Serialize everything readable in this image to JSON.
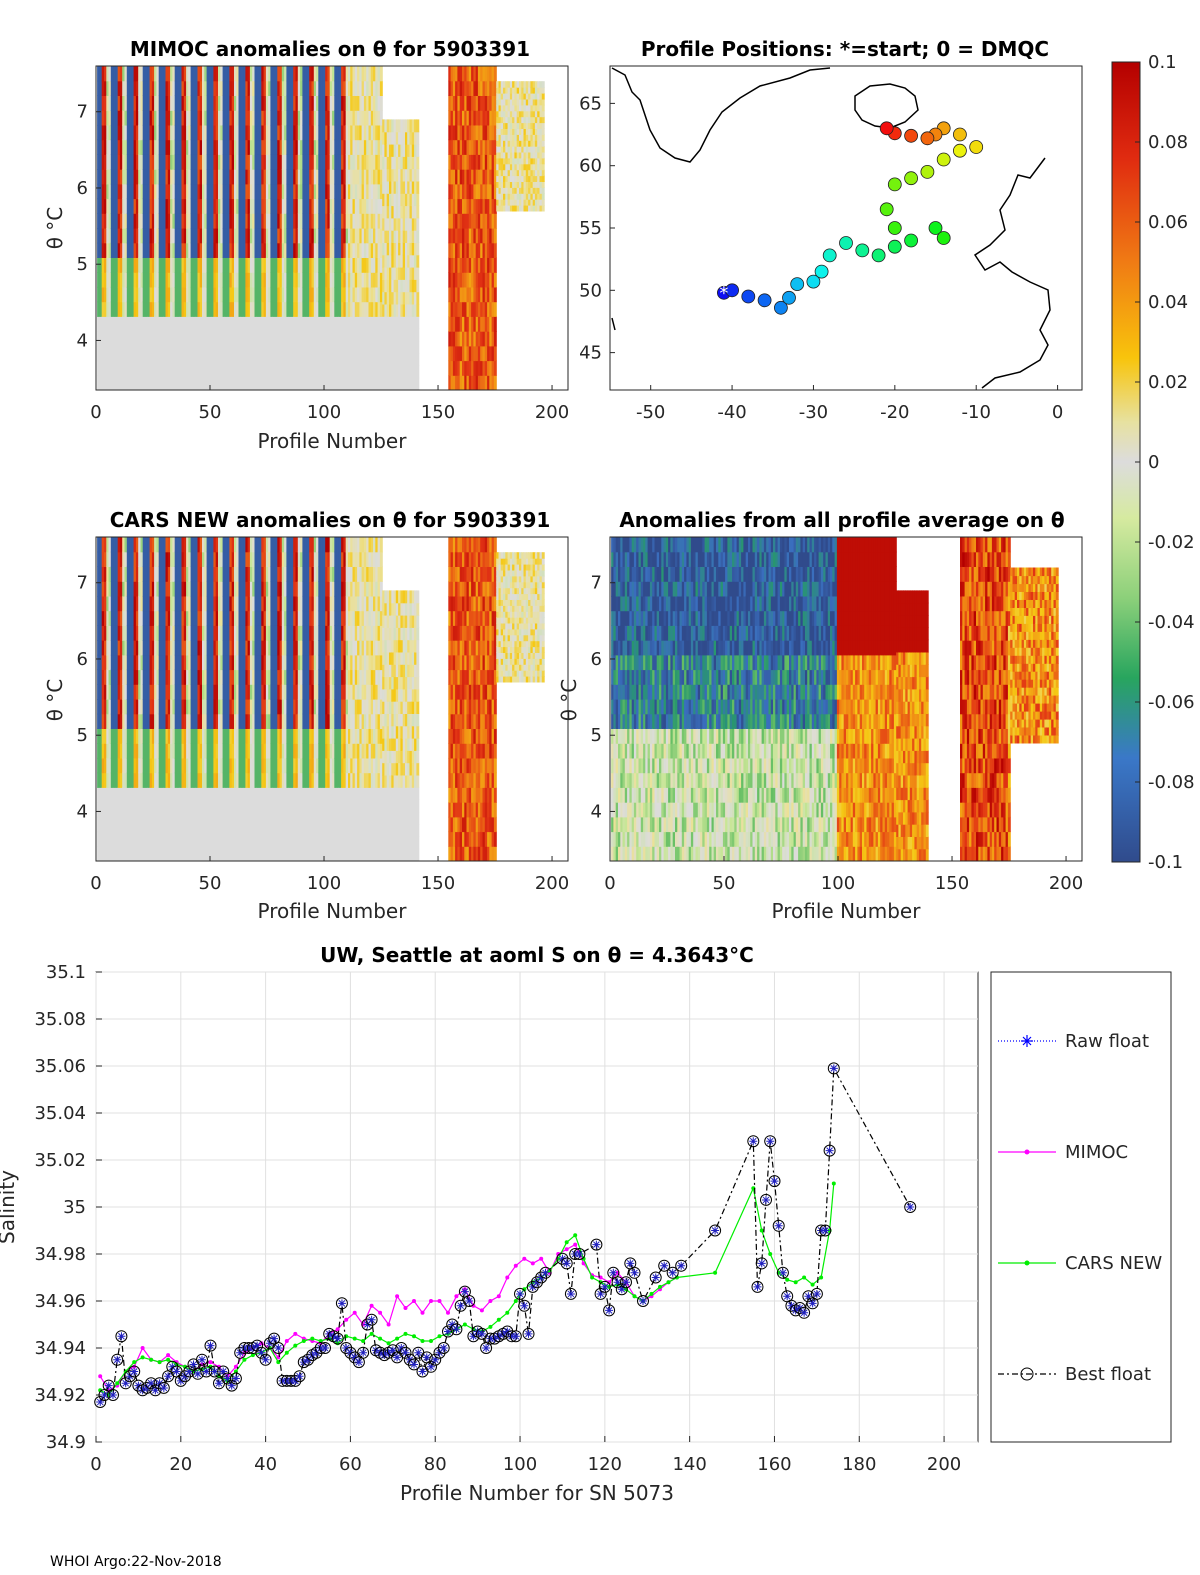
{
  "footer": "WHOI Argo:22-Nov-2018",
  "colors": {
    "raw": "#0000ff",
    "mimoc": "#ff00ff",
    "cars": "#00ee00",
    "best": "#000000",
    "marker_edge": "#2020c0"
  },
  "colorbar": {
    "ticks": [
      "0.1",
      "0.08",
      "0.06",
      "0.04",
      "0.02",
      "0",
      "-0.02",
      "-0.04",
      "-0.06",
      "-0.08",
      "-0.1"
    ]
  },
  "chart_data": [
    {
      "type": "heatmap",
      "title": "MIMOC anomalies on θ  for 5903391",
      "xlabel": "Profile Number",
      "ylabel": "θ °C",
      "xlim": [
        0,
        207
      ],
      "ylim": [
        3.35,
        7.6
      ],
      "xticks": [
        "0",
        "50",
        "100",
        "150",
        "200"
      ],
      "yticks": [
        "4",
        "5",
        "6",
        "7"
      ]
    },
    {
      "type": "scatter",
      "title": "Profile Positions: *=start; 0 = DMQC",
      "xlim": [
        -55,
        3
      ],
      "ylim": [
        42,
        68
      ],
      "xticks": [
        "-50",
        "-40",
        "-30",
        "-20",
        "-10",
        "0"
      ],
      "yticks": [
        "45",
        "50",
        "55",
        "60",
        "65"
      ],
      "track": [
        [
          -41,
          49.8
        ],
        [
          -40,
          50
        ],
        [
          -38,
          49.5
        ],
        [
          -36,
          49.2
        ],
        [
          -34,
          48.6
        ],
        [
          -33,
          49.4
        ],
        [
          -32,
          50.5
        ],
        [
          -30,
          50.7
        ],
        [
          -29,
          51.5
        ],
        [
          -28,
          52.8
        ],
        [
          -26,
          53.8
        ],
        [
          -24,
          53.2
        ],
        [
          -22,
          52.8
        ],
        [
          -20,
          53.5
        ],
        [
          -18,
          54
        ],
        [
          -15,
          55
        ],
        [
          -14,
          54.2
        ],
        [
          -20,
          55
        ],
        [
          -21,
          56.5
        ],
        [
          -20,
          58.5
        ],
        [
          -18,
          59
        ],
        [
          -16,
          59.5
        ],
        [
          -14,
          60.5
        ],
        [
          -12,
          61.2
        ],
        [
          -10,
          61.5
        ],
        [
          -12,
          62.5
        ],
        [
          -14,
          63
        ],
        [
          -15,
          62.5
        ],
        [
          -16,
          62.2
        ],
        [
          -18,
          62.4
        ],
        [
          -20,
          62.6
        ],
        [
          -21,
          63
        ]
      ]
    },
    {
      "type": "heatmap",
      "title": "CARS NEW anomalies on θ for 5903391",
      "xlabel": "Profile Number",
      "ylabel": "θ °C",
      "xlim": [
        0,
        207
      ],
      "ylim": [
        3.35,
        7.6
      ],
      "xticks": [
        "0",
        "50",
        "100",
        "150",
        "200"
      ],
      "yticks": [
        "4",
        "5",
        "6",
        "7"
      ]
    },
    {
      "type": "heatmap",
      "title": "Anomalies from all profile average on θ",
      "xlabel": "Profile Number",
      "ylabel": "θ °C",
      "xlim": [
        0,
        207
      ],
      "ylim": [
        3.35,
        7.6
      ],
      "xticks": [
        "0",
        "50",
        "100",
        "150",
        "200"
      ],
      "yticks": [
        "4",
        "5",
        "6",
        "7"
      ]
    },
    {
      "type": "line",
      "title": "UW, Seattle at aoml S on θ = 4.3643°C",
      "xlabel": "Profile Number for SN 5073",
      "ylabel": "Salinity",
      "xlim": [
        0,
        208
      ],
      "ylim": [
        34.9,
        35.1
      ],
      "xticks": [
        "0",
        "20",
        "40",
        "60",
        "80",
        "100",
        "120",
        "140",
        "160",
        "180",
        "200"
      ],
      "yticks": [
        "34.9",
        "34.92",
        "34.94",
        "34.96",
        "34.98",
        "35",
        "35.02",
        "35.04",
        "35.06",
        "35.08",
        "35.1"
      ],
      "legend": [
        "Raw float",
        "MIMOC",
        "CARS NEW",
        "Best float"
      ],
      "series": [
        {
          "name": "Best float",
          "x": [
            1,
            2,
            3,
            4,
            5,
            6,
            7,
            8,
            9,
            10,
            11,
            12,
            13,
            14,
            15,
            16,
            17,
            18,
            19,
            20,
            21,
            22,
            23,
            24,
            25,
            26,
            27,
            28,
            29,
            30,
            31,
            32,
            33,
            34,
            35,
            36,
            37,
            38,
            39,
            40,
            41,
            42,
            43,
            44,
            45,
            46,
            47,
            48,
            49,
            50,
            51,
            52,
            53,
            54,
            55,
            56,
            57,
            58,
            59,
            60,
            61,
            62,
            63,
            64,
            65,
            66,
            67,
            68,
            69,
            70,
            71,
            72,
            73,
            74,
            75,
            76,
            77,
            78,
            79,
            80,
            81,
            82,
            83,
            84,
            85,
            86,
            87,
            88,
            89,
            90,
            91,
            92,
            93,
            94,
            95,
            96,
            97,
            98,
            99,
            100,
            101,
            102,
            103,
            104,
            105,
            106,
            110,
            111,
            112,
            113,
            114,
            118,
            119,
            120,
            121,
            122,
            123,
            124,
            125,
            126,
            127,
            129,
            132,
            134,
            136,
            138,
            146,
            155,
            156,
            157,
            158,
            159,
            160,
            161,
            162,
            163,
            164,
            165,
            166,
            167,
            168,
            169,
            170,
            171,
            172,
            173,
            174,
            192
          ],
          "y": [
            34.917,
            34.92,
            34.924,
            34.92,
            34.935,
            34.945,
            34.925,
            34.928,
            34.93,
            34.924,
            34.922,
            34.923,
            34.925,
            34.922,
            34.925,
            34.923,
            34.928,
            34.932,
            34.93,
            34.926,
            34.928,
            34.93,
            34.933,
            34.929,
            34.935,
            34.93,
            34.941,
            34.93,
            34.925,
            34.93,
            34.927,
            34.924,
            34.927,
            34.938,
            34.94,
            34.94,
            34.94,
            34.941,
            34.938,
            34.935,
            34.942,
            34.944,
            34.94,
            34.926,
            34.926,
            34.926,
            34.926,
            34.928,
            34.934,
            34.935,
            34.937,
            34.938,
            34.94,
            34.94,
            34.946,
            34.945,
            34.944,
            34.959,
            34.94,
            34.938,
            34.936,
            34.934,
            34.938,
            34.95,
            34.952,
            34.939,
            34.938,
            34.937,
            34.938,
            34.939,
            34.936,
            34.94,
            34.938,
            34.935,
            34.933,
            34.938,
            34.93,
            34.936,
            34.932,
            34.935,
            34.938,
            34.94,
            34.947,
            34.95,
            34.948,
            34.958,
            34.964,
            34.96,
            34.945,
            34.947,
            34.946,
            34.94,
            34.944,
            34.944,
            34.945,
            34.946,
            34.947,
            34.945,
            34.945,
            34.963,
            34.958,
            34.946,
            34.966,
            34.968,
            34.97,
            34.972,
            34.978,
            34.976,
            34.963,
            34.98,
            34.98,
            34.984,
            34.963,
            34.966,
            34.956,
            34.972,
            34.968,
            34.965,
            34.968,
            34.976,
            34.972,
            34.96,
            34.97,
            34.975,
            34.972,
            34.975,
            34.99,
            35.028,
            34.966,
            34.976,
            35.003,
            35.028,
            35.011,
            34.992,
            34.972,
            34.962,
            34.958,
            34.956,
            34.957,
            34.955,
            34.962,
            34.959,
            34.963,
            34.99,
            34.99,
            35.024,
            35.059,
            35
          ]
        },
        {
          "name": "MIMOC",
          "x": [
            1,
            3,
            5,
            7,
            9,
            11,
            13,
            15,
            17,
            19,
            21,
            23,
            25,
            27,
            29,
            31,
            33,
            35,
            37,
            39,
            41,
            43,
            45,
            47,
            49,
            51,
            53,
            55,
            57,
            59,
            61,
            63,
            65,
            67,
            69,
            71,
            73,
            75,
            77,
            79,
            81,
            83,
            85,
            87,
            89,
            91,
            93,
            95,
            97,
            99,
            101,
            103,
            105,
            107,
            109,
            111,
            113,
            115,
            117,
            119,
            121,
            123,
            125,
            127,
            129,
            131,
            133,
            135,
            137
          ],
          "y": [
            34.928,
            34.922,
            34.924,
            34.93,
            34.932,
            34.94,
            34.935,
            34.934,
            34.937,
            34.934,
            34.932,
            34.93,
            34.933,
            34.934,
            34.932,
            34.928,
            34.932,
            34.938,
            34.94,
            34.942,
            34.94,
            34.936,
            34.943,
            34.946,
            34.944,
            34.943,
            34.942,
            34.946,
            34.948,
            34.952,
            34.955,
            34.95,
            34.958,
            34.955,
            34.95,
            34.962,
            34.957,
            34.96,
            34.955,
            34.96,
            34.96,
            34.955,
            34.962,
            34.965,
            34.958,
            34.956,
            34.96,
            34.962,
            34.97,
            34.975,
            34.978,
            34.976,
            34.978,
            34.972,
            34.98,
            34.982,
            34.984,
            34.976,
            34.971,
            34.97,
            34.968,
            34.972,
            34.968,
            34.962,
            34.96,
            34.962,
            34.965,
            34.968,
            34.97
          ]
        },
        {
          "name": "CARS NEW",
          "x": [
            1,
            3,
            5,
            7,
            9,
            11,
            13,
            15,
            17,
            19,
            21,
            23,
            25,
            27,
            29,
            31,
            33,
            35,
            37,
            39,
            41,
            43,
            45,
            47,
            49,
            51,
            53,
            55,
            57,
            59,
            61,
            63,
            65,
            67,
            69,
            71,
            73,
            75,
            77,
            79,
            81,
            83,
            85,
            87,
            89,
            91,
            93,
            95,
            97,
            99,
            101,
            103,
            105,
            107,
            109,
            111,
            113,
            115,
            117,
            119,
            121,
            123,
            125,
            127,
            129,
            131,
            133,
            135,
            137,
            146,
            155,
            157,
            159,
            161,
            163,
            165,
            167,
            169,
            171,
            173,
            174
          ],
          "y": [
            34.922,
            34.92,
            34.925,
            34.93,
            34.934,
            34.936,
            34.935,
            34.934,
            34.935,
            34.933,
            34.932,
            34.93,
            34.931,
            34.932,
            34.928,
            34.926,
            34.93,
            34.935,
            34.937,
            34.938,
            34.94,
            34.934,
            34.938,
            34.941,
            34.943,
            34.944,
            34.943,
            34.944,
            34.942,
            34.945,
            34.944,
            34.943,
            34.946,
            34.944,
            34.942,
            34.944,
            34.946,
            34.945,
            34.943,
            34.943,
            34.945,
            34.946,
            34.948,
            34.95,
            34.948,
            34.947,
            34.949,
            34.952,
            34.955,
            34.96,
            34.965,
            34.968,
            34.97,
            34.973,
            34.978,
            34.985,
            34.988,
            34.978,
            34.97,
            34.968,
            34.966,
            34.967,
            34.965,
            34.962,
            34.96,
            34.963,
            34.966,
            34.968,
            34.97,
            34.972,
            35.008,
            34.99,
            34.98,
            34.972,
            34.969,
            34.968,
            34.97,
            34.967,
            34.97,
            34.99,
            35.01
          ]
        }
      ]
    }
  ]
}
